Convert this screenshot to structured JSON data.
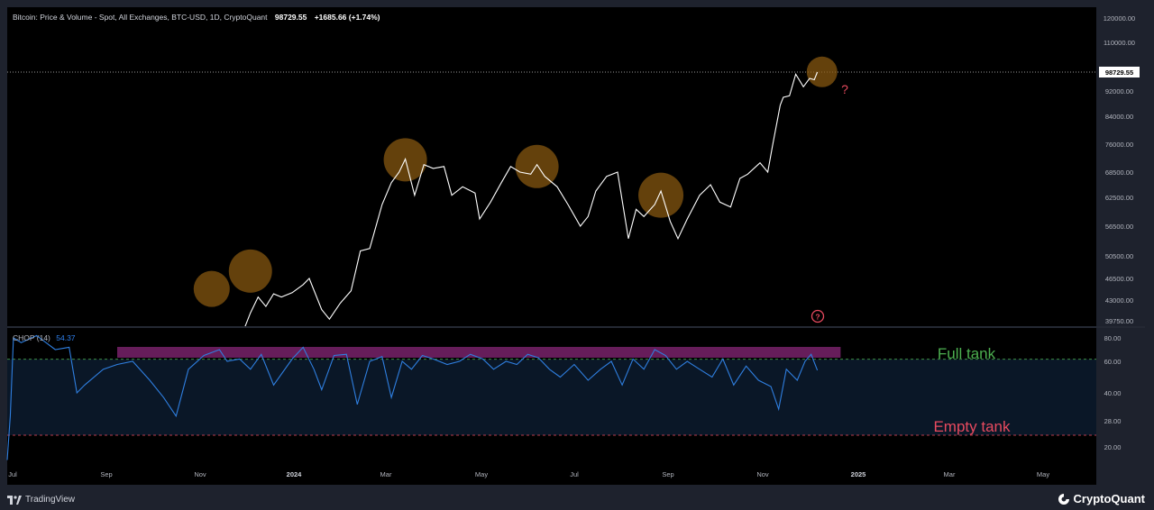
{
  "header": {
    "title": "Bitcoin: Price & Volume - Spot, All Exchanges, BTC-USD, 1D, CryptoQuant",
    "price": "98729.55",
    "change": "+1685.66 (+1.74%)"
  },
  "indicator": {
    "name": "CHOP (14)",
    "value": "54.37",
    "full_label": "Full tank",
    "empty_label": "Empty tank",
    "full_level": 61.8,
    "empty_level": 23.6,
    "band_color": "#6b1f5f"
  },
  "footer": {
    "left_brand": "TradingView",
    "right_brand": "CryptoQuant"
  },
  "annotations": {
    "question_mark": "?",
    "marker_question": "?"
  },
  "colors": {
    "price_line": "#ffffff",
    "chop_line": "#2f7fe0",
    "circle_fill": "#8a5a10",
    "full_tank": "#4caf50",
    "empty_tank": "#e84a5f",
    "background": "#000000"
  },
  "chart_data": [
    {
      "type": "line",
      "title": "Bitcoin: Price & Volume - Spot, All Exchanges, BTC-USD, 1D, CryptoQuant",
      "y_ticks": [
        "120000.00",
        "110000.00",
        "98729.55",
        "92000.00",
        "84000.00",
        "76000.00",
        "68500.00",
        "62500.00",
        "56500.00",
        "50500.00",
        "46500.00",
        "43000.00",
        "39750.00"
      ],
      "x_ticks": [
        "Jul",
        "Sep",
        "Nov",
        "2024",
        "Mar",
        "May",
        "Jul",
        "Sep",
        "Nov",
        "2025",
        "Mar",
        "May"
      ],
      "x": [
        "2023-10-20",
        "2023-10-25",
        "2023-10-30",
        "2023-11-05",
        "2023-11-10",
        "2023-11-15",
        "2023-11-20",
        "2023-11-25",
        "2023-12-01",
        "2023-12-05",
        "2023-12-10",
        "2023-12-15",
        "2023-12-20",
        "2023-12-25",
        "2024-01-01",
        "2024-01-08",
        "2024-01-12",
        "2024-01-20",
        "2024-01-25",
        "2024-02-01",
        "2024-02-08",
        "2024-02-14",
        "2024-02-20",
        "2024-02-28",
        "2024-03-05",
        "2024-03-10",
        "2024-03-14",
        "2024-03-20",
        "2024-03-26",
        "2024-04-01",
        "2024-04-08",
        "2024-04-13",
        "2024-04-20",
        "2024-04-28",
        "2024-05-01",
        "2024-05-08",
        "2024-05-15",
        "2024-05-21",
        "2024-05-27",
        "2024-06-03",
        "2024-06-07",
        "2024-06-12",
        "2024-06-20",
        "2024-06-27",
        "2024-07-05",
        "2024-07-10",
        "2024-07-15",
        "2024-07-22",
        "2024-07-29",
        "2024-08-05",
        "2024-08-10",
        "2024-08-15",
        "2024-08-22",
        "2024-08-26",
        "2024-09-01",
        "2024-09-06",
        "2024-09-12",
        "2024-09-20",
        "2024-09-27",
        "2024-10-03",
        "2024-10-10",
        "2024-10-16",
        "2024-10-21",
        "2024-10-29",
        "2024-11-03",
        "2024-11-06",
        "2024-11-11",
        "2024-11-13",
        "2024-11-17",
        "2024-11-21",
        "2024-11-26",
        "2024-11-30",
        "2024-12-03",
        "2024-12-05"
      ],
      "series": [
        {
          "values": [
            34500,
            34000,
            35000,
            35200,
            37000,
            37500,
            37000,
            37800,
            38500,
            41000,
            43500,
            42000,
            44000,
            43500,
            44200,
            45500,
            46500,
            41500,
            40000,
            42500,
            44500,
            51500,
            52000,
            61000,
            66000,
            68500,
            72000,
            63000,
            70500,
            69500,
            70000,
            63000,
            65000,
            63500,
            58000,
            61500,
            66000,
            70000,
            68500,
            68000,
            70500,
            67500,
            65000,
            61000,
            56500,
            58500,
            64000,
            67500,
            68500,
            54000,
            60000,
            58500,
            61000,
            64000,
            57500,
            54000,
            58000,
            63000,
            65500,
            61500,
            60500,
            67000,
            68000,
            71000,
            68500,
            75500,
            87500,
            90000,
            90500,
            98000,
            93500,
            96500,
            96000,
            98729.55
          ]
        }
      ],
      "highlights": [
        {
          "x": "2023-11-10",
          "y": 44800
        },
        {
          "x": "2023-12-05",
          "y": 47800
        },
        {
          "x": "2024-03-14",
          "y": 71800
        },
        {
          "x": "2024-06-07",
          "y": 70000
        },
        {
          "x": "2024-08-26",
          "y": 63000
        },
        {
          "x": "2024-12-08",
          "y": 98800
        }
      ]
    },
    {
      "type": "line",
      "title": "CHOP (14)",
      "y_ticks": [
        "80.00",
        "60.00",
        "40.00",
        "28.00",
        "20.00"
      ],
      "ylim": [
        14,
        84
      ],
      "x": [
        "2023-07-01",
        "2023-07-03",
        "2023-07-05",
        "2023-07-10",
        "2023-07-20",
        "2023-08-01",
        "2023-08-10",
        "2023-08-15",
        "2023-08-20",
        "2023-09-01",
        "2023-09-10",
        "2023-09-20",
        "2023-10-01",
        "2023-10-10",
        "2023-10-18",
        "2023-10-26",
        "2023-11-05",
        "2023-11-15",
        "2023-11-20",
        "2023-11-28",
        "2023-12-05",
        "2023-12-12",
        "2023-12-20",
        "2024-01-01",
        "2024-01-08",
        "2024-01-15",
        "2024-01-20",
        "2024-01-28",
        "2024-02-05",
        "2024-02-12",
        "2024-02-20",
        "2024-02-28",
        "2024-03-05",
        "2024-03-12",
        "2024-03-18",
        "2024-03-25",
        "2024-04-01",
        "2024-04-10",
        "2024-04-18",
        "2024-04-25",
        "2024-05-03",
        "2024-05-10",
        "2024-05-18",
        "2024-05-25",
        "2024-06-01",
        "2024-06-08",
        "2024-06-15",
        "2024-06-22",
        "2024-07-01",
        "2024-07-10",
        "2024-07-18",
        "2024-07-25",
        "2024-08-01",
        "2024-08-08",
        "2024-08-15",
        "2024-08-22",
        "2024-08-29",
        "2024-09-05",
        "2024-09-12",
        "2024-09-20",
        "2024-09-28",
        "2024-10-05",
        "2024-10-12",
        "2024-10-20",
        "2024-10-28",
        "2024-11-05",
        "2024-11-10",
        "2024-11-15",
        "2024-11-22",
        "2024-11-27",
        "2024-12-01",
        "2024-12-05"
      ],
      "series": [
        {
          "values": [
            16,
            30,
            80,
            76,
            82,
            70,
            72,
            40,
            45,
            55,
            58,
            60,
            48,
            38,
            30,
            55,
            65,
            70,
            60,
            62,
            55,
            66,
            45,
            62,
            72,
            55,
            42,
            65,
            66,
            35,
            60,
            64,
            38,
            60,
            55,
            65,
            62,
            58,
            60,
            66,
            62,
            55,
            60,
            58,
            66,
            63,
            55,
            50,
            58,
            48,
            55,
            60,
            45,
            62,
            55,
            70,
            65,
            55,
            60,
            55,
            50,
            62,
            45,
            57,
            48,
            44,
            33,
            55,
            48,
            60,
            66,
            54.37
          ]
        }
      ]
    }
  ]
}
